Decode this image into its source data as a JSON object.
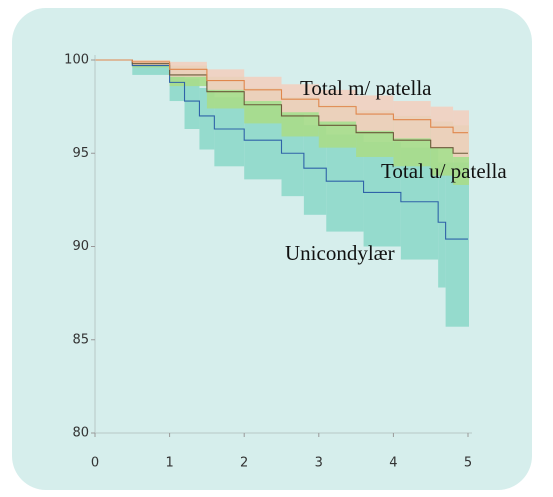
{
  "chart_data": {
    "type": "step",
    "xlim": [
      0,
      5
    ],
    "xticks": [
      0,
      1,
      2,
      3,
      4,
      5
    ],
    "ylim": [
      80,
      100
    ],
    "yticks": [
      80,
      85,
      90,
      95,
      100
    ],
    "series": [
      {
        "name": "Unicondylær",
        "color": "#2f63a8",
        "band_color": "#8ed8ca",
        "x": [
          0,
          0.5,
          1,
          1.2,
          1.4,
          1.6,
          2,
          2.5,
          2.8,
          3.1,
          3.6,
          4.1,
          4.6,
          4.7,
          5
        ],
        "values": [
          100,
          99.7,
          98.8,
          97.8,
          97,
          96.3,
          95.7,
          95,
          94.2,
          93.5,
          92.9,
          92.4,
          91.3,
          90.4,
          90.4
        ],
        "lower": [
          100,
          99.2,
          97.8,
          96.3,
          95.2,
          94.3,
          93.6,
          92.7,
          91.7,
          90.8,
          90,
          89.3,
          87.8,
          85.7,
          85.7
        ],
        "upper": [
          100,
          100,
          99.6,
          99,
          98.5,
          98,
          97.6,
          97.1,
          96.5,
          96,
          95.6,
          95.3,
          94.5,
          94.5,
          94.5
        ]
      },
      {
        "name": "Total u/ patella",
        "color": "#6b5a3a",
        "band_color": "#a9dc8a",
        "x": [
          0,
          0.5,
          1,
          1.5,
          2,
          2.5,
          3,
          3.5,
          4,
          4.5,
          4.8,
          5
        ],
        "values": [
          100,
          99.8,
          99.2,
          98.3,
          97.6,
          97,
          96.5,
          96.1,
          95.7,
          95.3,
          95,
          95
        ],
        "lower": [
          100,
          99.6,
          98.6,
          97.4,
          96.6,
          95.9,
          95.3,
          94.8,
          94.3,
          93.8,
          93.3,
          93.3
        ],
        "upper": [
          100,
          100,
          99.7,
          99.1,
          98.5,
          98,
          97.6,
          97.3,
          97,
          96.7,
          96.5,
          96.5
        ]
      },
      {
        "name": "Total m/ patella",
        "color": "#e0874c",
        "band_color": "#f2cfc0",
        "x": [
          0,
          0.5,
          1,
          1.5,
          2,
          2.5,
          3,
          3.5,
          4,
          4.5,
          4.8,
          5
        ],
        "values": [
          100,
          99.9,
          99.5,
          98.9,
          98.4,
          97.9,
          97.5,
          97.1,
          96.8,
          96.4,
          96.1,
          96.1
        ],
        "lower": [
          100,
          99.7,
          99.1,
          98.4,
          97.8,
          97.2,
          96.7,
          96.2,
          95.8,
          95.3,
          94.8,
          94.8
        ],
        "upper": [
          100,
          100,
          99.9,
          99.5,
          99.1,
          98.7,
          98.4,
          98.1,
          97.8,
          97.5,
          97.3,
          97.3
        ]
      }
    ]
  }
}
